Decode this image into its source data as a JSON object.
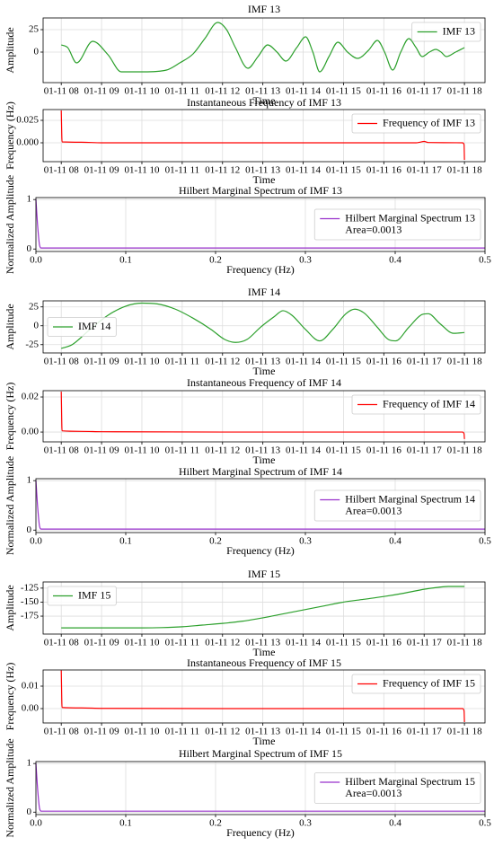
{
  "chart_data": [
    {
      "type": "line",
      "title": "IMF 13",
      "xlabel": "Time",
      "ylabel": "Amplitude",
      "x": [
        8.0,
        8.16,
        8.38,
        8.78,
        9.16,
        9.49,
        10.05,
        10.61,
        10.94,
        11.27,
        11.56,
        11.88,
        12.1,
        12.32,
        12.63,
        12.88,
        13.12,
        13.35,
        13.57,
        13.84,
        14.06,
        14.24,
        14.41,
        14.64,
        14.86,
        15.1,
        15.35,
        15.62,
        15.84,
        16.02,
        16.22,
        16.42,
        16.62,
        16.8,
        16.95,
        17.13,
        17.29,
        17.42,
        17.55,
        17.78,
        18.0
      ],
      "series": [
        {
          "name": "IMF 13",
          "color": "#2ca02c",
          "values": [
            8,
            5,
            -12,
            12,
            -3,
            -22,
            -22,
            -20,
            -12,
            -2,
            15,
            33,
            25,
            5,
            -18,
            -5,
            8,
            0,
            -10,
            5,
            17,
            0,
            -22,
            -5,
            11,
            0,
            -7,
            2,
            13,
            0,
            -20,
            0,
            15,
            5,
            -5,
            0,
            3,
            0,
            -5,
            0,
            5
          ]
        }
      ],
      "xlim": [
        7.55,
        18.51
      ],
      "xticks": [
        {
          "value": 8,
          "label": "01-11 08"
        },
        {
          "value": 9,
          "label": "01-11 09"
        },
        {
          "value": 10,
          "label": "01-11 10"
        },
        {
          "value": 11,
          "label": "01-11 11"
        },
        {
          "value": 12,
          "label": "01-11 12"
        },
        {
          "value": 13,
          "label": "01-11 13"
        },
        {
          "value": 14,
          "label": "01-11 14"
        },
        {
          "value": 15,
          "label": "01-11 15"
        },
        {
          "value": 16,
          "label": "01-11 16"
        },
        {
          "value": 17,
          "label": "01-11 17"
        },
        {
          "value": 18,
          "label": "01-11 18"
        }
      ],
      "ylim": [
        -34,
        38
      ],
      "yticks": [
        0,
        25
      ],
      "grid": true,
      "legend": "upper right"
    },
    {
      "type": "line",
      "title": "Instantaneous Frequency of IMF 13",
      "xlabel": "Time",
      "ylabel": "Frequency (Hz)",
      "x": [
        8.0,
        8.02,
        8.5,
        9,
        12,
        16.8,
        16.9,
        17.0,
        17.1,
        17.95,
        17.99,
        18.0
      ],
      "series": [
        {
          "name": "Frequency of IMF 13",
          "color": "#ff0000",
          "values": [
            0.036,
            0.001,
            0.0006,
            0,
            0,
            0,
            0.0007,
            0.0015,
            0.0003,
            0,
            -0.002,
            -0.019
          ]
        }
      ],
      "xlim": [
        7.55,
        18.51
      ],
      "xticks": [
        {
          "value": 8,
          "label": "01-11 08"
        },
        {
          "value": 9,
          "label": "01-11 09"
        },
        {
          "value": 10,
          "label": "01-11 10"
        },
        {
          "value": 11,
          "label": "01-11 11"
        },
        {
          "value": 12,
          "label": "01-11 12"
        },
        {
          "value": 13,
          "label": "01-11 13"
        },
        {
          "value": 14,
          "label": "01-11 14"
        },
        {
          "value": 15,
          "label": "01-11 15"
        },
        {
          "value": 16,
          "label": "01-11 16"
        },
        {
          "value": 17,
          "label": "01-11 17"
        },
        {
          "value": 18,
          "label": "01-11 18"
        }
      ],
      "ylim": [
        -0.021,
        0.037
      ],
      "yticks": [
        {
          "value": 0,
          "label": "0.000"
        },
        0.025
      ],
      "grid": true,
      "legend": "upper right"
    },
    {
      "type": "line",
      "title": "Hilbert Marginal Spectrum of IMF 13",
      "xlabel": "Frequency (Hz)",
      "ylabel": "Normalized Amplitude",
      "x": [
        0,
        0.002,
        0.004,
        0.006,
        0.5
      ],
      "series": [
        {
          "name": "Hilbert Marginal Spectrum 13",
          "color": "#9932cc",
          "values": [
            1,
            0.45,
            0.08,
            0.02,
            0.02
          ]
        }
      ],
      "legend_note": "Area=0.0013",
      "xlim": [
        0,
        0.5
      ],
      "xticks": [
        {
          "value": 0,
          "label": "0.0"
        },
        0.1,
        0.2,
        0.3,
        0.4,
        0.5
      ],
      "ylim": [
        -0.05,
        1.04
      ],
      "yticks": [
        0,
        1
      ],
      "grid": true,
      "legend": "center right"
    },
    {
      "type": "line",
      "title": "IMF 14",
      "xlabel": "Time",
      "ylabel": "Amplitude",
      "x": [
        8.0,
        8.27,
        8.71,
        9.16,
        9.6,
        10.0,
        10.38,
        10.83,
        11.27,
        11.72,
        12.05,
        12.32,
        12.61,
        12.94,
        13.28,
        13.5,
        13.72,
        14.06,
        14.41,
        14.73,
        15.06,
        15.28,
        15.51,
        15.84,
        16.11,
        16.29,
        16.62,
        16.95,
        17.1,
        17.39,
        17.73,
        18.0
      ],
      "series": [
        {
          "name": "IMF 14",
          "color": "#2ca02c",
          "values": [
            -30,
            -25,
            -5,
            14,
            26,
            30,
            29,
            22,
            10,
            -5,
            -18,
            -22,
            -18,
            -2,
            12,
            20,
            14,
            -5,
            -20,
            -5,
            16,
            22,
            17,
            -2,
            -18,
            -20,
            -2,
            15,
            16,
            3,
            -10,
            -9
          ]
        }
      ],
      "xlim": [
        7.55,
        18.51
      ],
      "xticks": [
        {
          "value": 8,
          "label": "01-11 08"
        },
        {
          "value": 9,
          "label": "01-11 09"
        },
        {
          "value": 10,
          "label": "01-11 10"
        },
        {
          "value": 11,
          "label": "01-11 11"
        },
        {
          "value": 12,
          "label": "01-11 12"
        },
        {
          "value": 13,
          "label": "01-11 13"
        },
        {
          "value": 14,
          "label": "01-11 14"
        },
        {
          "value": 15,
          "label": "01-11 15"
        },
        {
          "value": 16,
          "label": "01-11 16"
        },
        {
          "value": 17,
          "label": "01-11 17"
        },
        {
          "value": 18,
          "label": "01-11 18"
        }
      ],
      "ylim": [
        -36,
        33
      ],
      "yticks": [
        -25,
        0,
        25
      ],
      "grid": true,
      "legend": "center left"
    },
    {
      "type": "line",
      "title": "Instantaneous Frequency of IMF 14",
      "xlabel": "Time",
      "ylabel": "Frequency (Hz)",
      "x": [
        8.0,
        8.02,
        8.5,
        9,
        12,
        16.8,
        16.9,
        17.0,
        17.1,
        17.95,
        17.99,
        18.0
      ],
      "series": [
        {
          "name": "Frequency of IMF 14",
          "color": "#ff0000",
          "values": [
            0.023,
            0.0007,
            0.0004,
            0.0002,
            0,
            0,
            0,
            0,
            0,
            0,
            -0.001,
            -0.004
          ]
        }
      ],
      "xlim": [
        7.55,
        18.51
      ],
      "xticks": [
        {
          "value": 8,
          "label": "01-11 08"
        },
        {
          "value": 9,
          "label": "01-11 09"
        },
        {
          "value": 10,
          "label": "01-11 10"
        },
        {
          "value": 11,
          "label": "01-11 11"
        },
        {
          "value": 12,
          "label": "01-11 12"
        },
        {
          "value": 13,
          "label": "01-11 13"
        },
        {
          "value": 14,
          "label": "01-11 14"
        },
        {
          "value": 15,
          "label": "01-11 15"
        },
        {
          "value": 16,
          "label": "01-11 16"
        },
        {
          "value": 17,
          "label": "01-11 17"
        },
        {
          "value": 18,
          "label": "01-11 18"
        }
      ],
      "ylim": [
        -0.0056,
        0.0236
      ],
      "yticks": [
        {
          "value": 0,
          "label": "0.00"
        },
        0.02
      ],
      "grid": true,
      "legend": "upper right"
    },
    {
      "type": "line",
      "title": "Hilbert Marginal Spectrum of IMF 14",
      "xlabel": "Frequency (Hz)",
      "ylabel": "Normalized Amplitude",
      "x": [
        0,
        0.002,
        0.004,
        0.006,
        0.5
      ],
      "series": [
        {
          "name": "Hilbert Marginal Spectrum 14",
          "color": "#9932cc",
          "values": [
            1,
            0.45,
            0.08,
            0.02,
            0.02
          ]
        }
      ],
      "legend_note": "Area=0.0013",
      "xlim": [
        0,
        0.5
      ],
      "xticks": [
        {
          "value": 0,
          "label": "0.0"
        },
        0.1,
        0.2,
        0.3,
        0.4,
        0.5
      ],
      "ylim": [
        -0.05,
        1.04
      ],
      "yticks": [
        0,
        1
      ],
      "grid": true,
      "legend": "center right"
    },
    {
      "type": "line",
      "title": "IMF 15",
      "xlabel": "Time",
      "ylabel": "Amplitude",
      "x": [
        8,
        9,
        10,
        10.5,
        11,
        11.5,
        12,
        12.5,
        13,
        13.5,
        14,
        14.5,
        15,
        15.5,
        16,
        16.5,
        17,
        17.3,
        17.6,
        18
      ],
      "series": [
        {
          "name": "IMF 15",
          "color": "#2ca02c",
          "values": [
            -196,
            -196,
            -196,
            -195.5,
            -194,
            -191,
            -188,
            -184,
            -178,
            -171,
            -164,
            -157,
            -150,
            -145,
            -140,
            -134,
            -127,
            -124,
            -122,
            -122
          ]
        }
      ],
      "xlim": [
        7.55,
        18.51
      ],
      "xticks": [
        {
          "value": 8,
          "label": "01-11 08"
        },
        {
          "value": 9,
          "label": "01-11 09"
        },
        {
          "value": 10,
          "label": "01-11 10"
        },
        {
          "value": 11,
          "label": "01-11 11"
        },
        {
          "value": 12,
          "label": "01-11 12"
        },
        {
          "value": 13,
          "label": "01-11 13"
        },
        {
          "value": 14,
          "label": "01-11 14"
        },
        {
          "value": 15,
          "label": "01-11 15"
        },
        {
          "value": 16,
          "label": "01-11 16"
        },
        {
          "value": 17,
          "label": "01-11 17"
        },
        {
          "value": 18,
          "label": "01-11 18"
        }
      ],
      "ylim": [
        -207,
        -114
      ],
      "yticks": [
        -175,
        -150,
        -125
      ],
      "grid": true,
      "legend": "upper left"
    },
    {
      "type": "line",
      "title": "Instantaneous Frequency of IMF 15",
      "xlabel": "Time",
      "ylabel": "Frequency (Hz)",
      "x": [
        8.0,
        8.02,
        8.5,
        9,
        12,
        16.8,
        16.9,
        17.0,
        17.1,
        17.95,
        17.99,
        18.0
      ],
      "series": [
        {
          "name": "Frequency of IMF 15",
          "color": "#ff0000",
          "values": [
            0.017,
            0.0005,
            0.0003,
            0.0001,
            0,
            0,
            0,
            0,
            0,
            0,
            -0.001,
            -0.006
          ]
        }
      ],
      "xlim": [
        7.55,
        18.51
      ],
      "xticks": [
        {
          "value": 8,
          "label": "01-11 08"
        },
        {
          "value": 9,
          "label": "01-11 09"
        },
        {
          "value": 10,
          "label": "01-11 10"
        },
        {
          "value": 11,
          "label": "01-11 11"
        },
        {
          "value": 12,
          "label": "01-11 12"
        },
        {
          "value": 13,
          "label": "01-11 13"
        },
        {
          "value": 14,
          "label": "01-11 14"
        },
        {
          "value": 15,
          "label": "01-11 15"
        },
        {
          "value": 16,
          "label": "01-11 16"
        },
        {
          "value": 17,
          "label": "01-11 17"
        },
        {
          "value": 18,
          "label": "01-11 18"
        }
      ],
      "ylim": [
        -0.0064,
        0.0172
      ],
      "yticks": [
        {
          "value": 0,
          "label": "0.00"
        },
        0.01
      ],
      "grid": true,
      "legend": "upper right"
    },
    {
      "type": "line",
      "title": "Hilbert Marginal Spectrum of IMF 15",
      "xlabel": "Frequency (Hz)",
      "ylabel": "Normalized Amplitude",
      "x": [
        0,
        0.002,
        0.004,
        0.006,
        0.5
      ],
      "series": [
        {
          "name": "Hilbert Marginal Spectrum 15",
          "color": "#9932cc",
          "values": [
            1,
            0.45,
            0.08,
            0.02,
            0.02
          ]
        }
      ],
      "legend_note": "Area=0.0013",
      "xlim": [
        0,
        0.5
      ],
      "xticks": [
        {
          "value": 0,
          "label": "0.0"
        },
        0.1,
        0.2,
        0.3,
        0.4,
        0.5
      ],
      "ylim": [
        -0.05,
        1.04
      ],
      "yticks": [
        0,
        1
      ],
      "grid": true,
      "legend": "center right"
    }
  ]
}
